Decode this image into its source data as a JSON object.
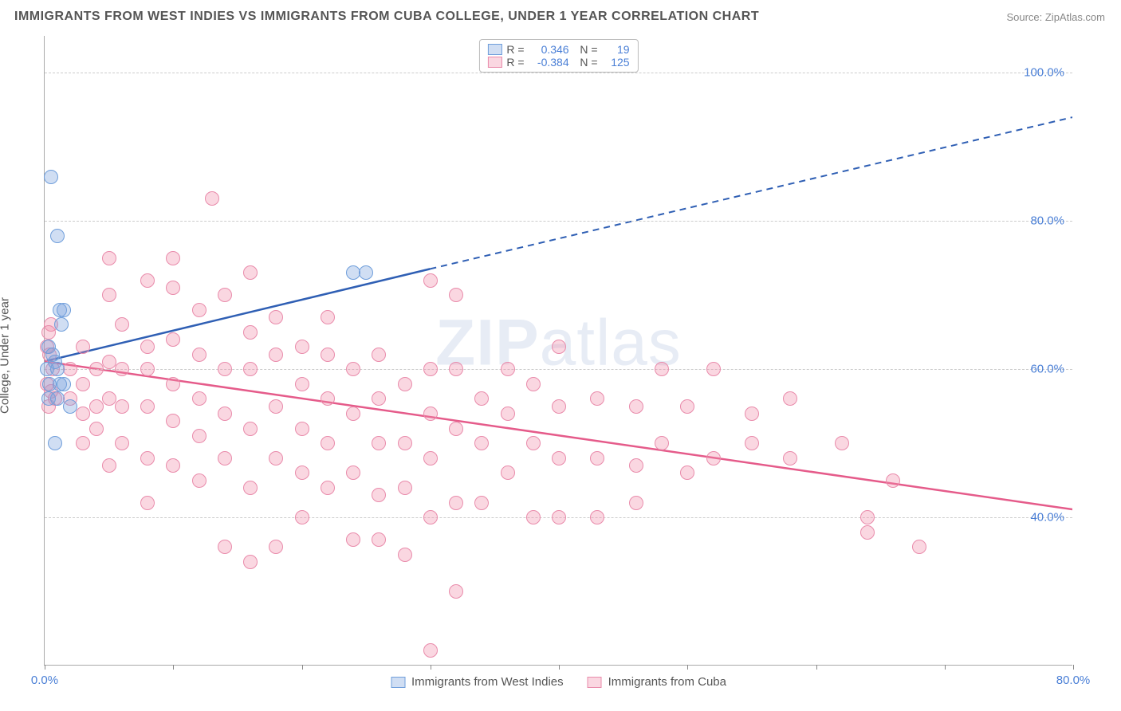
{
  "title": "IMMIGRANTS FROM WEST INDIES VS IMMIGRANTS FROM CUBA COLLEGE, UNDER 1 YEAR CORRELATION CHART",
  "source_label": "Source: ",
  "source_name": "ZipAtlas.com",
  "ylabel": "College, Under 1 year",
  "watermark_a": "ZIP",
  "watermark_b": "atlas",
  "chart": {
    "type": "scatter",
    "xlim": [
      0,
      80
    ],
    "ylim": [
      20,
      105
    ],
    "xtick_positions": [
      0,
      10,
      20,
      30,
      40,
      50,
      60,
      70,
      80
    ],
    "xtick_labels": {
      "0": "0.0%",
      "80": "80.0%"
    },
    "ytick_positions": [
      40,
      60,
      80,
      100
    ],
    "ytick_labels": {
      "40": "40.0%",
      "60": "60.0%",
      "80": "80.0%",
      "100": "100.0%"
    },
    "background_color": "#ffffff",
    "grid_color": "#cccccc",
    "axis_color": "#aaaaaa",
    "tick_label_color": "#4a7fd6",
    "marker_radius": 9,
    "marker_stroke_width": 1.5,
    "line_width": 2.5
  },
  "series": [
    {
      "name": "Immigrants from West Indies",
      "fill": "rgba(120,160,220,0.35)",
      "stroke": "#6f9edb",
      "line_color": "#2f5fb4",
      "R": "0.346",
      "N": "19",
      "trend": {
        "x1": 0,
        "y1": 61,
        "x2_solid": 30,
        "y2_solid": 73.5,
        "x2_dash": 80,
        "y2_dash": 94
      },
      "points": [
        [
          0.5,
          86
        ],
        [
          1,
          78
        ],
        [
          1.2,
          68
        ],
        [
          1.5,
          68
        ],
        [
          1.3,
          66
        ],
        [
          0.3,
          63
        ],
        [
          0.6,
          62
        ],
        [
          0.8,
          61
        ],
        [
          0.2,
          60
        ],
        [
          1.0,
          60
        ],
        [
          1.2,
          58
        ],
        [
          0.4,
          58
        ],
        [
          1.5,
          58
        ],
        [
          0.3,
          56
        ],
        [
          1.0,
          56
        ],
        [
          2.0,
          55
        ],
        [
          0.8,
          50
        ],
        [
          24,
          73
        ],
        [
          25,
          73
        ]
      ]
    },
    {
      "name": "Immigrants from Cuba",
      "fill": "rgba(240,140,170,0.35)",
      "stroke": "#e98bab",
      "line_color": "#e55b8a",
      "R": "-0.384",
      "N": "125",
      "trend": {
        "x1": 0,
        "y1": 61,
        "x2_solid": 80,
        "y2_solid": 41,
        "x2_dash": 80,
        "y2_dash": 41
      },
      "points": [
        [
          0.5,
          66
        ],
        [
          0.3,
          65
        ],
        [
          0.2,
          63
        ],
        [
          0.4,
          62
        ],
        [
          0.6,
          60
        ],
        [
          0.2,
          58
        ],
        [
          0.5,
          57
        ],
        [
          0.8,
          56
        ],
        [
          0.3,
          55
        ],
        [
          2,
          60
        ],
        [
          2,
          56
        ],
        [
          3,
          63
        ],
        [
          3,
          58
        ],
        [
          3,
          54
        ],
        [
          3,
          50
        ],
        [
          4,
          60
        ],
        [
          4,
          55
        ],
        [
          4,
          52
        ],
        [
          5,
          75
        ],
        [
          5,
          70
        ],
        [
          5,
          61
        ],
        [
          5,
          56
        ],
        [
          5,
          47
        ],
        [
          6,
          66
        ],
        [
          6,
          60
        ],
        [
          6,
          55
        ],
        [
          6,
          50
        ],
        [
          8,
          72
        ],
        [
          8,
          63
        ],
        [
          8,
          60
        ],
        [
          8,
          55
        ],
        [
          8,
          48
        ],
        [
          8,
          42
        ],
        [
          10,
          75
        ],
        [
          10,
          71
        ],
        [
          10,
          64
        ],
        [
          10,
          58
        ],
        [
          10,
          53
        ],
        [
          10,
          47
        ],
        [
          12,
          68
        ],
        [
          12,
          62
        ],
        [
          12,
          56
        ],
        [
          12,
          51
        ],
        [
          12,
          45
        ],
        [
          13,
          83
        ],
        [
          14,
          70
        ],
        [
          14,
          60
        ],
        [
          14,
          54
        ],
        [
          14,
          48
        ],
        [
          14,
          36
        ],
        [
          16,
          73
        ],
        [
          16,
          65
        ],
        [
          16,
          60
        ],
        [
          16,
          52
        ],
        [
          16,
          44
        ],
        [
          16,
          34
        ],
        [
          18,
          67
        ],
        [
          18,
          62
        ],
        [
          18,
          55
        ],
        [
          18,
          48
        ],
        [
          18,
          36
        ],
        [
          20,
          63
        ],
        [
          20,
          58
        ],
        [
          20,
          52
        ],
        [
          20,
          46
        ],
        [
          20,
          40
        ],
        [
          22,
          67
        ],
        [
          22,
          62
        ],
        [
          22,
          56
        ],
        [
          22,
          50
        ],
        [
          22,
          44
        ],
        [
          24,
          60
        ],
        [
          24,
          54
        ],
        [
          24,
          46
        ],
        [
          24,
          37
        ],
        [
          26,
          62
        ],
        [
          26,
          56
        ],
        [
          26,
          50
        ],
        [
          26,
          43
        ],
        [
          26,
          37
        ],
        [
          28,
          58
        ],
        [
          28,
          50
        ],
        [
          28,
          44
        ],
        [
          28,
          35
        ],
        [
          30,
          72
        ],
        [
          30,
          60
        ],
        [
          30,
          54
        ],
        [
          30,
          48
        ],
        [
          30,
          40
        ],
        [
          30,
          22
        ],
        [
          32,
          70
        ],
        [
          32,
          60
        ],
        [
          32,
          52
        ],
        [
          32,
          42
        ],
        [
          32,
          30
        ],
        [
          34,
          56
        ],
        [
          34,
          50
        ],
        [
          34,
          42
        ],
        [
          36,
          60
        ],
        [
          36,
          54
        ],
        [
          36,
          46
        ],
        [
          38,
          58
        ],
        [
          38,
          50
        ],
        [
          38,
          40
        ],
        [
          40,
          63
        ],
        [
          40,
          55
        ],
        [
          40,
          48
        ],
        [
          40,
          40
        ],
        [
          43,
          56
        ],
        [
          43,
          48
        ],
        [
          43,
          40
        ],
        [
          46,
          55
        ],
        [
          46,
          47
        ],
        [
          46,
          42
        ],
        [
          48,
          60
        ],
        [
          48,
          50
        ],
        [
          50,
          55
        ],
        [
          50,
          46
        ],
        [
          52,
          60
        ],
        [
          52,
          48
        ],
        [
          55,
          54
        ],
        [
          55,
          50
        ],
        [
          58,
          56
        ],
        [
          58,
          48
        ],
        [
          62,
          50
        ],
        [
          64,
          40
        ],
        [
          64,
          38
        ],
        [
          66,
          45
        ],
        [
          68,
          36
        ]
      ]
    }
  ],
  "legend_top_labels": {
    "R": "R =",
    "N": "N ="
  },
  "legend_bottom": [
    {
      "label": "Immigrants from West Indies",
      "fill": "rgba(120,160,220,0.35)",
      "stroke": "#6f9edb"
    },
    {
      "label": "Immigrants from Cuba",
      "fill": "rgba(240,140,170,0.35)",
      "stroke": "#e98bab"
    }
  ]
}
